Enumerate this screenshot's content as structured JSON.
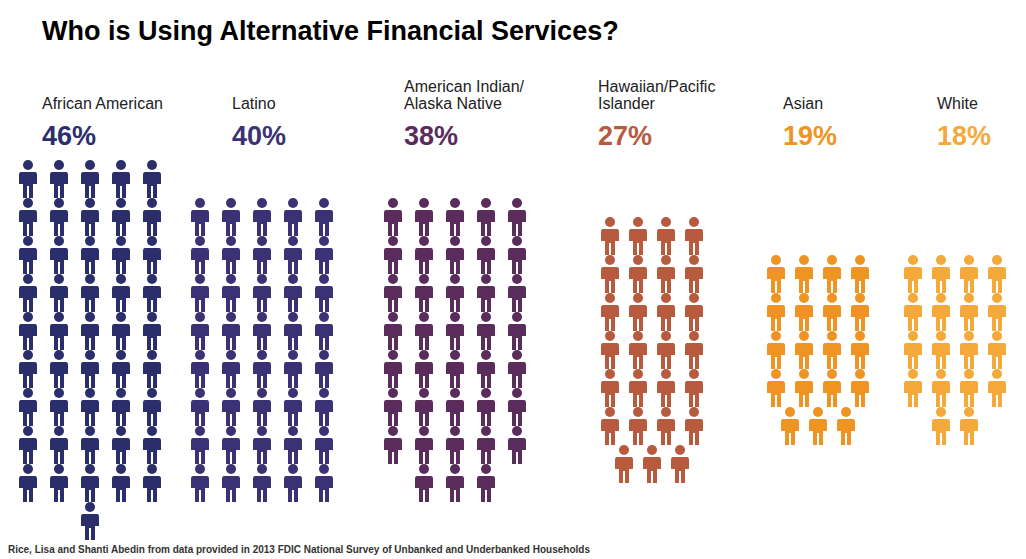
{
  "chart_data": {
    "type": "pictogram",
    "title": "Who is Using Alternative Financial Services?",
    "source": "Rice, Lisa and Shanti Abedin from data provided in 2013 FDIC National Survey of Unbanked and Underbanked Households",
    "categories": [
      "African American",
      "Latino",
      "American Indian/Alaska Native",
      "Hawaiian/Pacific Islander",
      "Asian",
      "White"
    ],
    "values": [
      46,
      40,
      38,
      27,
      19,
      18
    ],
    "value_labels": [
      "46%",
      "40%",
      "38%",
      "27%",
      "19%",
      "18%"
    ],
    "colors": [
      "#2a2e6b",
      "#3b3275",
      "#5a2c5c",
      "#b75a3e",
      "#ef9422",
      "#f4a93a"
    ],
    "data_labels": true,
    "tick_labels": false
  }
}
